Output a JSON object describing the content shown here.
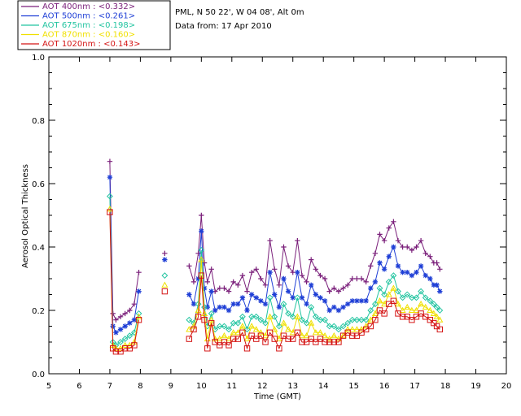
{
  "chart_data": {
    "type": "line",
    "xlabel": "Time (GMT)",
    "ylabel": "Aerosol Optical Thickness",
    "xlim": [
      5,
      20
    ],
    "ylim": [
      0.0,
      1.0
    ],
    "x_ticks": [
      "5",
      "6",
      "7",
      "8",
      "9",
      "10",
      "11",
      "12",
      "13",
      "14",
      "15",
      "16",
      "17",
      "18",
      "19",
      "20"
    ],
    "y_ticks": [
      "0.0",
      "0.2",
      "0.4",
      "0.6",
      "0.8",
      "1.0"
    ],
    "info_lines": [
      "PML, N 50 22', W 04 08', Alt 0m",
      "Data from: 17 Apr 2010"
    ],
    "x": [
      7.0,
      7.1,
      7.2,
      7.35,
      7.5,
      7.65,
      7.8,
      7.95,
      8.8,
      9.6,
      9.75,
      9.9,
      10.0,
      10.1,
      10.2,
      10.33,
      10.45,
      10.6,
      10.75,
      10.9,
      11.05,
      11.2,
      11.35,
      11.5,
      11.65,
      11.8,
      11.95,
      12.1,
      12.25,
      12.4,
      12.55,
      12.7,
      12.85,
      13.0,
      13.15,
      13.3,
      13.45,
      13.6,
      13.75,
      13.9,
      14.05,
      14.2,
      14.35,
      14.5,
      14.65,
      14.8,
      14.95,
      15.1,
      15.25,
      15.4,
      15.55,
      15.7,
      15.85,
      16.0,
      16.15,
      16.3,
      16.45,
      16.6,
      16.75,
      16.9,
      17.05,
      17.2,
      17.35,
      17.5,
      17.62,
      17.72,
      17.82
    ],
    "series": [
      {
        "name": "AOT  400nm : <0.332>",
        "color": "#7a1f7a",
        "marker": "plus",
        "values": [
          0.67,
          0.19,
          0.17,
          0.18,
          0.19,
          0.2,
          0.22,
          0.32,
          0.38,
          0.34,
          0.29,
          0.38,
          0.5,
          0.35,
          0.29,
          0.33,
          0.26,
          0.27,
          0.27,
          0.26,
          0.29,
          0.28,
          0.31,
          0.26,
          0.32,
          0.33,
          0.3,
          0.28,
          0.42,
          0.33,
          0.28,
          0.4,
          0.34,
          0.32,
          0.42,
          0.31,
          0.29,
          0.36,
          0.33,
          0.31,
          0.3,
          0.26,
          0.27,
          0.26,
          0.27,
          0.28,
          0.3,
          0.3,
          0.3,
          0.29,
          0.34,
          0.38,
          0.44,
          0.42,
          0.46,
          0.48,
          0.42,
          0.4,
          0.4,
          0.39,
          0.4,
          0.42,
          0.38,
          0.37,
          0.35,
          0.35,
          0.33
        ]
      },
      {
        "name": "AOT  500nm : <0.261>",
        "color": "#1f3fd6",
        "marker": "asterisk",
        "values": [
          0.62,
          0.15,
          0.13,
          0.14,
          0.15,
          0.16,
          0.17,
          0.26,
          0.36,
          0.25,
          0.22,
          0.3,
          0.45,
          0.27,
          0.21,
          0.26,
          0.2,
          0.21,
          0.21,
          0.2,
          0.22,
          0.22,
          0.24,
          0.2,
          0.25,
          0.24,
          0.23,
          0.22,
          0.32,
          0.25,
          0.21,
          0.3,
          0.26,
          0.24,
          0.32,
          0.24,
          0.22,
          0.28,
          0.25,
          0.24,
          0.23,
          0.2,
          0.21,
          0.2,
          0.21,
          0.22,
          0.23,
          0.23,
          0.23,
          0.23,
          0.27,
          0.29,
          0.35,
          0.33,
          0.37,
          0.4,
          0.34,
          0.32,
          0.32,
          0.31,
          0.32,
          0.34,
          0.31,
          0.3,
          0.28,
          0.28,
          0.26
        ]
      },
      {
        "name": "AOT  675nm : <0.198>",
        "color": "#22c4a0",
        "marker": "diamond",
        "values": [
          0.56,
          0.1,
          0.09,
          0.1,
          0.11,
          0.12,
          0.13,
          0.19,
          0.31,
          0.17,
          0.16,
          0.22,
          0.39,
          0.21,
          0.15,
          0.19,
          0.14,
          0.15,
          0.15,
          0.14,
          0.16,
          0.16,
          0.18,
          0.14,
          0.18,
          0.18,
          0.17,
          0.16,
          0.24,
          0.18,
          0.15,
          0.22,
          0.19,
          0.18,
          0.24,
          0.17,
          0.16,
          0.21,
          0.18,
          0.17,
          0.17,
          0.15,
          0.15,
          0.14,
          0.15,
          0.16,
          0.17,
          0.17,
          0.17,
          0.17,
          0.2,
          0.22,
          0.27,
          0.25,
          0.29,
          0.31,
          0.26,
          0.24,
          0.25,
          0.24,
          0.24,
          0.26,
          0.24,
          0.23,
          0.22,
          0.21,
          0.2
        ]
      },
      {
        "name": "AOT  870nm : <0.160>",
        "color": "#f0e000",
        "marker": "triangle",
        "values": [
          0.52,
          0.09,
          0.08,
          0.08,
          0.09,
          0.09,
          0.1,
          0.18,
          0.28,
          0.14,
          0.15,
          0.2,
          0.36,
          0.19,
          0.11,
          0.17,
          0.11,
          0.11,
          0.12,
          0.11,
          0.13,
          0.13,
          0.15,
          0.11,
          0.15,
          0.14,
          0.13,
          0.12,
          0.18,
          0.14,
          0.11,
          0.16,
          0.14,
          0.13,
          0.18,
          0.12,
          0.12,
          0.16,
          0.13,
          0.13,
          0.12,
          0.11,
          0.12,
          0.11,
          0.12,
          0.14,
          0.14,
          0.14,
          0.14,
          0.15,
          0.17,
          0.19,
          0.23,
          0.22,
          0.25,
          0.27,
          0.22,
          0.2,
          0.21,
          0.2,
          0.2,
          0.22,
          0.21,
          0.2,
          0.19,
          0.18,
          0.17
        ]
      },
      {
        "name": "AOT 1020nm : <0.143>",
        "color": "#d41414",
        "marker": "square",
        "values": [
          0.51,
          0.08,
          0.07,
          0.07,
          0.08,
          0.08,
          0.09,
          0.17,
          0.26,
          0.11,
          0.14,
          0.18,
          0.31,
          0.17,
          0.08,
          0.16,
          0.1,
          0.09,
          0.1,
          0.09,
          0.11,
          0.11,
          0.13,
          0.08,
          0.12,
          0.11,
          0.12,
          0.1,
          0.13,
          0.11,
          0.08,
          0.12,
          0.11,
          0.11,
          0.13,
          0.1,
          0.1,
          0.11,
          0.1,
          0.11,
          0.1,
          0.1,
          0.1,
          0.1,
          0.12,
          0.13,
          0.12,
          0.12,
          0.13,
          0.14,
          0.15,
          0.17,
          0.2,
          0.19,
          0.22,
          0.23,
          0.19,
          0.18,
          0.18,
          0.17,
          0.18,
          0.19,
          0.18,
          0.17,
          0.16,
          0.15,
          0.14
        ]
      }
    ],
    "gaps_after_x": [
      7.95,
      8.8
    ],
    "grid": false,
    "legend_position": "top-left, above plot"
  }
}
